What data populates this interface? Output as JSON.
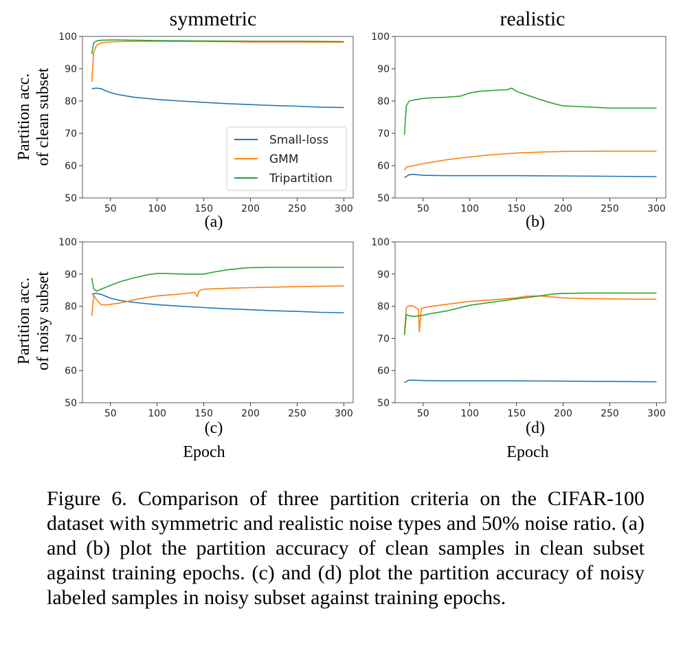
{
  "colors": {
    "small_loss": "#1f77b4",
    "gmm": "#ff7f0e",
    "tripartition": "#2ca02c"
  },
  "titles": {
    "symmetric": "symmetric",
    "realistic": "realistic"
  },
  "ylabels": {
    "clean_line1": "Partition acc.",
    "clean_line2": "of clean subset",
    "noisy_line1": "Partition acc.",
    "noisy_line2": "of noisy subset"
  },
  "xlabel": "Epoch",
  "caption": "Figure 6. Comparison of three partition criteria on the CIFAR-100 dataset with symmetric and realistic noise types and 50% noise ratio. (a) and (b) plot the partition accuracy of clean samples in clean subset against training epochs. (c) and (d) plot the partition accuracy of noisy labeled samples in noisy subset against training epochs.",
  "chart_data": [
    {
      "type": "line",
      "panel": "(a)",
      "title": "symmetric",
      "ylabel": "Partition acc. of clean subset",
      "xlim": [
        20,
        310
      ],
      "ylim": [
        50,
        100
      ],
      "xticks": [
        50,
        100,
        150,
        200,
        250,
        300
      ],
      "yticks": [
        50,
        60,
        70,
        80,
        90,
        100
      ],
      "legend": "center-right",
      "series": [
        {
          "name": "Small-loss",
          "x": [
            30,
            35,
            40,
            45,
            50,
            60,
            75,
            100,
            125,
            150,
            175,
            200,
            225,
            250,
            275,
            300
          ],
          "y": [
            83.8,
            84.0,
            83.8,
            83.2,
            82.6,
            81.9,
            81.2,
            80.5,
            80.0,
            79.6,
            79.2,
            78.9,
            78.6,
            78.4,
            78.1,
            78.0
          ]
        },
        {
          "name": "GMM",
          "x": [
            30,
            32,
            35,
            40,
            45,
            50,
            60,
            80,
            100,
            150,
            200,
            250,
            300
          ],
          "y": [
            86.0,
            95.0,
            97.2,
            98.0,
            98.2,
            98.3,
            98.4,
            98.5,
            98.5,
            98.4,
            98.3,
            98.3,
            98.2
          ]
        },
        {
          "name": "Tripartition",
          "x": [
            30,
            32,
            35,
            40,
            50,
            60,
            80,
            100,
            150,
            200,
            250,
            300
          ],
          "y": [
            94.5,
            98.0,
            98.6,
            98.8,
            98.9,
            98.9,
            98.8,
            98.7,
            98.6,
            98.5,
            98.5,
            98.4
          ]
        }
      ]
    },
    {
      "type": "line",
      "panel": "(b)",
      "title": "realistic",
      "xlim": [
        20,
        310
      ],
      "ylim": [
        50,
        100
      ],
      "xticks": [
        50,
        100,
        150,
        200,
        250,
        300
      ],
      "yticks": [
        50,
        60,
        70,
        80,
        90,
        100
      ],
      "series": [
        {
          "name": "Small-loss",
          "x": [
            30,
            35,
            40,
            50,
            75,
            100,
            150,
            200,
            250,
            300
          ],
          "y": [
            56.3,
            57.2,
            57.3,
            57.0,
            56.9,
            56.9,
            56.9,
            56.8,
            56.7,
            56.6
          ]
        },
        {
          "name": "GMM",
          "x": [
            30,
            32,
            40,
            50,
            75,
            100,
            125,
            150,
            175,
            200,
            250,
            300
          ],
          "y": [
            58.5,
            59.5,
            60.0,
            60.6,
            61.8,
            62.7,
            63.4,
            63.9,
            64.2,
            64.4,
            64.5,
            64.5
          ]
        },
        {
          "name": "Tripartition",
          "x": [
            30,
            32,
            35,
            40,
            50,
            60,
            75,
            90,
            100,
            110,
            125,
            140,
            145,
            150,
            160,
            175,
            190,
            200,
            225,
            250,
            275,
            300
          ],
          "y": [
            69.5,
            78.5,
            80.0,
            80.3,
            80.8,
            81.0,
            81.2,
            81.5,
            82.5,
            83.0,
            83.3,
            83.5,
            84.0,
            83.0,
            82.0,
            80.5,
            79.2,
            78.5,
            78.2,
            77.8,
            77.8,
            77.8
          ]
        }
      ]
    },
    {
      "type": "line",
      "panel": "(c)",
      "ylabel": "Partition acc. of noisy subset",
      "xlabel": "Epoch",
      "xlim": [
        20,
        310
      ],
      "ylim": [
        50,
        100
      ],
      "xticks": [
        50,
        100,
        150,
        200,
        250,
        300
      ],
      "yticks": [
        50,
        60,
        70,
        80,
        90,
        100
      ],
      "series": [
        {
          "name": "Small-loss",
          "x": [
            30,
            35,
            40,
            45,
            50,
            60,
            75,
            100,
            125,
            150,
            175,
            200,
            225,
            250,
            275,
            300
          ],
          "y": [
            83.8,
            84.0,
            83.7,
            83.1,
            82.5,
            81.8,
            81.2,
            80.5,
            80.0,
            79.6,
            79.2,
            78.9,
            78.6,
            78.4,
            78.1,
            78.0
          ]
        },
        {
          "name": "GMM",
          "x": [
            30,
            32,
            35,
            40,
            45,
            50,
            60,
            70,
            80,
            100,
            125,
            140,
            143,
            145,
            150,
            175,
            200,
            250,
            300
          ],
          "y": [
            77.0,
            83.5,
            82.0,
            80.5,
            80.4,
            80.6,
            81.0,
            81.6,
            82.3,
            83.2,
            83.8,
            84.3,
            83.0,
            84.8,
            85.3,
            85.6,
            85.8,
            86.1,
            86.3
          ]
        },
        {
          "name": "Tripartition",
          "x": [
            30,
            32,
            35,
            40,
            50,
            60,
            75,
            90,
            100,
            110,
            125,
            150,
            160,
            175,
            190,
            200,
            225,
            250,
            275,
            300
          ],
          "y": [
            88.8,
            85.5,
            84.7,
            85.3,
            86.5,
            87.6,
            88.8,
            89.8,
            90.2,
            90.2,
            90.0,
            90.0,
            90.6,
            91.3,
            91.8,
            92.0,
            92.1,
            92.1,
            92.1,
            92.1
          ]
        }
      ]
    },
    {
      "type": "line",
      "panel": "(d)",
      "xlabel": "Epoch",
      "xlim": [
        20,
        310
      ],
      "ylim": [
        50,
        100
      ],
      "xticks": [
        50,
        100,
        150,
        200,
        250,
        300
      ],
      "yticks": [
        50,
        60,
        70,
        80,
        90,
        100
      ],
      "series": [
        {
          "name": "Small-loss",
          "x": [
            30,
            35,
            40,
            50,
            75,
            100,
            150,
            200,
            250,
            300
          ],
          "y": [
            56.3,
            57.0,
            57.0,
            56.9,
            56.8,
            56.8,
            56.8,
            56.7,
            56.6,
            56.5
          ]
        },
        {
          "name": "GMM",
          "x": [
            30,
            32,
            35,
            40,
            45,
            46,
            48,
            50,
            60,
            75,
            100,
            125,
            150,
            160,
            175,
            200,
            225,
            250,
            275,
            300
          ],
          "y": [
            71.5,
            79.5,
            80.2,
            80.0,
            79.0,
            72.0,
            79.2,
            79.5,
            80.0,
            80.6,
            81.5,
            82.0,
            82.6,
            83.1,
            83.2,
            82.6,
            82.4,
            82.3,
            82.2,
            82.2
          ]
        },
        {
          "name": "Tripartition",
          "x": [
            30,
            32,
            35,
            40,
            50,
            60,
            75,
            100,
            125,
            150,
            175,
            190,
            200,
            225,
            250,
            275,
            300
          ],
          "y": [
            71.0,
            77.5,
            77.0,
            76.8,
            77.2,
            77.8,
            78.5,
            80.3,
            81.3,
            82.3,
            83.2,
            83.8,
            84.0,
            84.1,
            84.1,
            84.1,
            84.1
          ]
        }
      ]
    }
  ]
}
